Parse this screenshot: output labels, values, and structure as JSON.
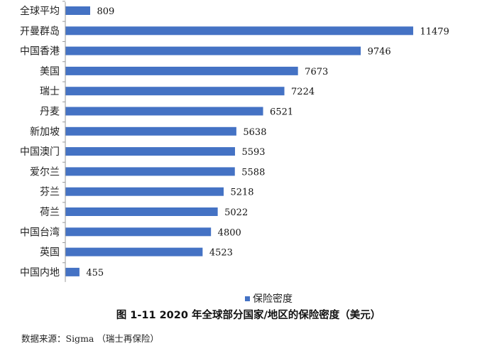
{
  "chart_data": {
    "type": "bar",
    "orientation": "horizontal",
    "categories": [
      "全球平均",
      "开曼群岛",
      "中国香港",
      "美国",
      "瑞士",
      "丹麦",
      "新加坡",
      "中国澳门",
      "爱尔兰",
      "芬兰",
      "荷兰",
      "中国台湾",
      "英国",
      "中国内地"
    ],
    "series": [
      {
        "name": "保险密度",
        "values": [
          809,
          11479,
          9746,
          7673,
          7224,
          6521,
          5638,
          5593,
          5588,
          5218,
          5022,
          4800,
          4523,
          455
        ]
      }
    ],
    "data_labels": true,
    "xlim": [
      0,
      12500
    ],
    "legend_position": "bottom",
    "grid": false,
    "bar_color": "#4472C4"
  },
  "legend": {
    "label": "保险密度"
  },
  "caption": "图 1-11 2020 年全球部分国家/地区的保险密度（美元）",
  "source": "数据来源：Sigma （瑞士再保险）"
}
